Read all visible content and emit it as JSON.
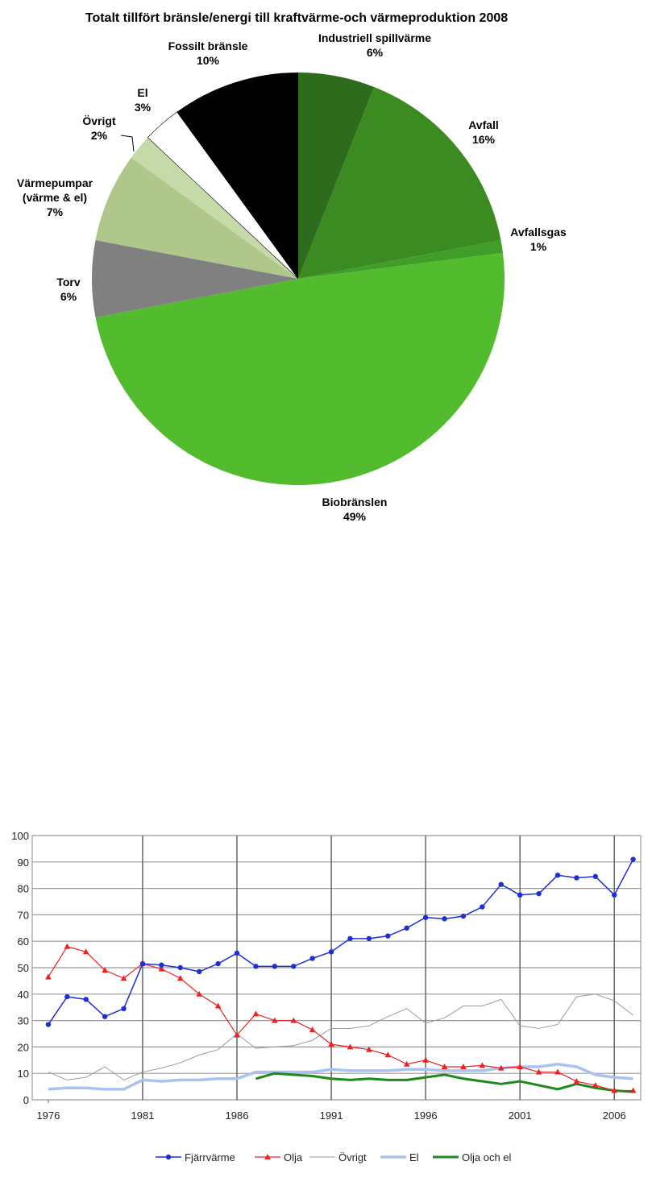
{
  "chart_data": [
    {
      "type": "pie",
      "title": "Totalt tillfört bränsle/energi till kraftvärme-och värmeproduktion 2008",
      "categories": [
        "Industriell spillvärme",
        "Avfall",
        "Avfallsgas",
        "Biobränslen",
        "Torv",
        "Värmepumpar\n(värme & el)",
        "Övrigt",
        "El",
        "Fossilt bränsle"
      ],
      "values": [
        6,
        16,
        1,
        49,
        6,
        7,
        2,
        3,
        10
      ],
      "value_labels": [
        "6%",
        "16%",
        "1%",
        "49%",
        "6%",
        "7%",
        "2%",
        "3%",
        "10%"
      ],
      "colors": [
        "#2e6b1c",
        "#3b8a22",
        "#3f9e27",
        "#52bb2e",
        "#808080",
        "#afc78a",
        "#c6d9a9",
        "#ffffff",
        "#000000"
      ]
    },
    {
      "type": "line",
      "x": [
        1976,
        1977,
        1978,
        1979,
        1980,
        1981,
        1982,
        1983,
        1984,
        1985,
        1986,
        1987,
        1988,
        1989,
        1990,
        1991,
        1992,
        1993,
        1994,
        1995,
        1996,
        1997,
        1998,
        1999,
        2000,
        2001,
        2002,
        2003,
        2004,
        2005,
        2006,
        2007
      ],
      "xlim": [
        1975.15,
        2007.4
      ],
      "xticks": [
        1976,
        1981,
        1986,
        1991,
        1996,
        2001,
        2006
      ],
      "ylim": [
        0,
        100
      ],
      "yticks": [
        0,
        10,
        20,
        30,
        40,
        50,
        60,
        70,
        80,
        90,
        100
      ],
      "grid": true,
      "legend": "bottom",
      "series": [
        {
          "name": "Fjärrvärme",
          "color": "#1f2fd6",
          "marker": "circle",
          "line_width": 1.5,
          "values": [
            28.5,
            39,
            38,
            31.5,
            34.5,
            51.5,
            51,
            50,
            48.5,
            51.5,
            55.5,
            50.5,
            50.5,
            50.5,
            53.5,
            56,
            61,
            61,
            62,
            65,
            69,
            68.5,
            69.5,
            73,
            81.5,
            77.5,
            78,
            85,
            84,
            84.5,
            77.5,
            91
          ]
        },
        {
          "name": "Olja",
          "color": "#ee2020",
          "marker": "triangle",
          "line_width": 1.2,
          "values": [
            46.5,
            58,
            56,
            49,
            46,
            51.5,
            49.5,
            46,
            40,
            35.5,
            24.5,
            32.5,
            30,
            30,
            26.5,
            21,
            20,
            19,
            17,
            13.5,
            15,
            12.5,
            12.5,
            13,
            12,
            12.5,
            10.5,
            10.5,
            7,
            5.5,
            3.5,
            3.5
          ]
        },
        {
          "name": "Övrigt",
          "color": "#9a9a9a",
          "marker": null,
          "line_width": 1,
          "values": [
            10.5,
            7.5,
            8.5,
            12.5,
            7.5,
            10.5,
            12,
            14,
            17,
            19,
            25,
            19.5,
            20,
            20.5,
            22.5,
            27,
            27,
            28,
            31.5,
            34.5,
            29,
            31,
            35.5,
            35.5,
            38,
            28,
            27,
            28.5,
            39,
            40,
            37.5,
            32
          ]
        },
        {
          "name": "El",
          "color": "#a9c2ef",
          "marker": null,
          "line_width": 3.5,
          "values": [
            4,
            4.5,
            4.5,
            4,
            4,
            7.5,
            7,
            7.5,
            7.5,
            8,
            8,
            10.5,
            10.5,
            10.5,
            10.5,
            11.5,
            11,
            11,
            11,
            11.5,
            11.5,
            11,
            11,
            11,
            12,
            12.5,
            12.5,
            13.5,
            12.5,
            9.5,
            8.5,
            8
          ]
        },
        {
          "name": "Olja och el",
          "color": "#1e8a1e",
          "marker": null,
          "line_width": 3,
          "values": [
            null,
            null,
            null,
            null,
            null,
            null,
            null,
            null,
            null,
            null,
            null,
            8,
            10,
            9.5,
            9,
            8,
            7.5,
            8,
            7.5,
            7.5,
            8.5,
            9.5,
            8,
            7,
            6,
            7,
            5.5,
            4,
            6,
            4.5,
            3.5,
            3
          ]
        }
      ]
    }
  ]
}
